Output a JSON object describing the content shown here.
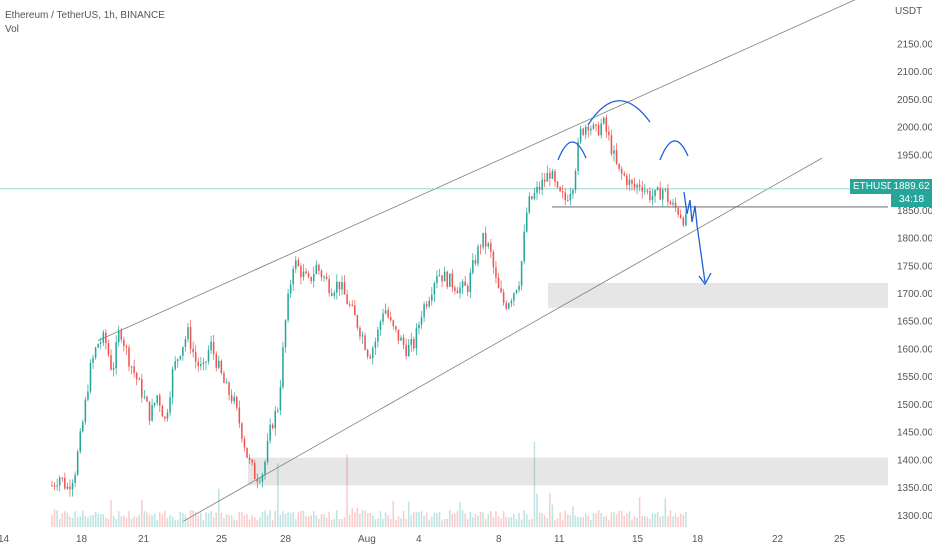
{
  "legend": {
    "title": "Ethereum / TetherUS, 1h, BINANCE",
    "indicator": "Vol"
  },
  "chart_data": {
    "type": "candlestick",
    "symbol": "ETHUSDT",
    "y_unit": "USDT",
    "ylim": [
      1280,
      2230
    ],
    "y_ticks": [
      1300,
      1350,
      1400,
      1450,
      1500,
      1550,
      1600,
      1650,
      1700,
      1750,
      1800,
      1850,
      1900,
      1950,
      2000,
      2050,
      2100,
      2150
    ],
    "x_ticks": [
      "14",
      "18",
      "21",
      "25",
      "28",
      "Aug",
      "4",
      "8",
      "11",
      "15",
      "18",
      "22",
      "25"
    ],
    "last_price": 1889.62,
    "countdown": "34:18",
    "price_path": [
      [
        14,
        1355
      ],
      [
        15,
        1372
      ],
      [
        16,
        1350
      ],
      [
        17,
        1378
      ],
      [
        18,
        1460
      ],
      [
        19,
        1560
      ],
      [
        20,
        1610
      ],
      [
        21,
        1620
      ],
      [
        22,
        1560
      ],
      [
        23,
        1640
      ],
      [
        24,
        1590
      ],
      [
        25,
        1555
      ],
      [
        26,
        1520
      ],
      [
        27,
        1480
      ],
      [
        28,
        1520
      ],
      [
        29,
        1470
      ],
      [
        30,
        1560
      ],
      [
        31,
        1600
      ],
      [
        32,
        1630
      ],
      [
        33,
        1580
      ],
      [
        34,
        1560
      ],
      [
        35,
        1610
      ],
      [
        36,
        1570
      ],
      [
        37,
        1530
      ],
      [
        38,
        1510
      ],
      [
        39,
        1460
      ],
      [
        40,
        1400
      ],
      [
        41,
        1370
      ],
      [
        42,
        1380
      ],
      [
        43,
        1460
      ],
      [
        44,
        1500
      ],
      [
        45,
        1660
      ],
      [
        46,
        1760
      ],
      [
        47,
        1740
      ],
      [
        48,
        1720
      ],
      [
        49,
        1750
      ],
      [
        50,
        1730
      ],
      [
        51,
        1710
      ],
      [
        52,
        1720
      ],
      [
        53,
        1690
      ],
      [
        54,
        1660
      ],
      [
        55,
        1630
      ],
      [
        56,
        1590
      ],
      [
        57,
        1620
      ],
      [
        58,
        1680
      ],
      [
        59,
        1640
      ],
      [
        60,
        1620
      ],
      [
        61,
        1600
      ],
      [
        62,
        1610
      ],
      [
        63,
        1670
      ],
      [
        64,
        1700
      ],
      [
        65,
        1740
      ],
      [
        66,
        1730
      ],
      [
        67,
        1720
      ],
      [
        68,
        1710
      ],
      [
        69,
        1710
      ],
      [
        70,
        1760
      ],
      [
        71,
        1800
      ],
      [
        72,
        1780
      ],
      [
        73,
        1710
      ],
      [
        74,
        1680
      ],
      [
        75,
        1700
      ],
      [
        76,
        1730
      ],
      [
        77,
        1860
      ],
      [
        78,
        1880
      ],
      [
        79,
        1900
      ],
      [
        80,
        1920
      ],
      [
        81,
        1880
      ],
      [
        82,
        1870
      ],
      [
        83,
        1900
      ],
      [
        84,
        1990
      ],
      [
        85,
        2010
      ],
      [
        86,
        1990
      ],
      [
        87,
        2010
      ],
      [
        88,
        1970
      ],
      [
        89,
        1920
      ],
      [
        90,
        1910
      ],
      [
        91,
        1890
      ],
      [
        92,
        1900
      ],
      [
        93,
        1880
      ],
      [
        94,
        1875
      ],
      [
        95,
        1890
      ],
      [
        96,
        1860
      ],
      [
        97,
        1850
      ],
      [
        98,
        1830
      ]
    ],
    "volume_spikes": [
      [
        36,
        0.45
      ],
      [
        44,
        0.75
      ],
      [
        53,
        0.85
      ],
      [
        78,
        1.0
      ],
      [
        80,
        0.4
      ],
      [
        92,
        0.35
      ]
    ],
    "annotations": {
      "channel_upper": [
        [
          1616,
          0
        ],
        [
          2260,
          1
        ]
      ],
      "channel_lower": [
        [
          1280,
          0
        ],
        [
          1940,
          1
        ]
      ],
      "neckline": 1857,
      "support_zones": [
        [
          1675,
          1720
        ],
        [
          1355,
          1405
        ]
      ],
      "projection_target": 1710
    },
    "colors": {
      "up": "#26a69a",
      "down": "#ef5350",
      "annotation_blue": "#1e62d8",
      "trendline": "#7f7f7f",
      "zone_fill": "#e6e6e6",
      "price_line": "#8cd4c8"
    }
  }
}
